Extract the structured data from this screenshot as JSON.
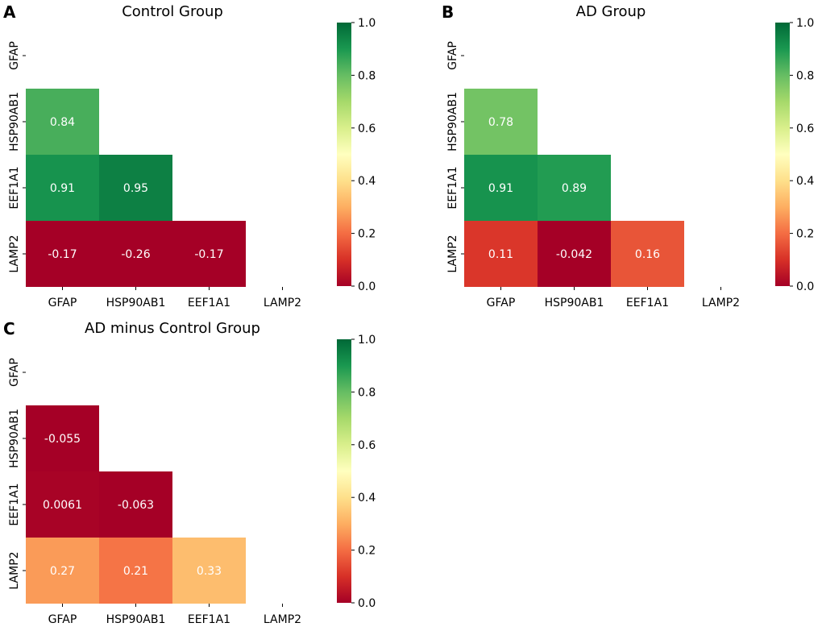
{
  "chart_data": [
    {
      "type": "heatmap",
      "panel_label": "A",
      "title": "Control Group",
      "row_labels": [
        "GFAP",
        "HSP90AB1",
        "EEF1A1",
        "LAMP2"
      ],
      "col_labels": [
        "GFAP",
        "HSP90AB1",
        "EEF1A1",
        "LAMP2"
      ],
      "mask": "upper-triangle-including-diagonal",
      "values": [
        [
          null,
          null,
          null,
          null
        ],
        [
          0.84,
          null,
          null,
          null
        ],
        [
          0.91,
          0.95,
          null,
          null
        ],
        [
          -0.17,
          -0.26,
          -0.17,
          null
        ]
      ],
      "annotations": [
        [
          null,
          null,
          null,
          null
        ],
        [
          "0.84",
          null,
          null,
          null
        ],
        [
          "0.91",
          "0.95",
          null,
          null
        ],
        [
          "-0.17",
          "-0.26",
          "-0.17",
          null
        ]
      ],
      "colorbar": {
        "colormap": "RdYlGn",
        "range": [
          0.0,
          1.0
        ],
        "ticks": [
          "0.0",
          "0.2",
          "0.4",
          "0.6",
          "0.8",
          "1.0"
        ]
      }
    },
    {
      "type": "heatmap",
      "panel_label": "B",
      "title": "AD Group",
      "row_labels": [
        "GFAP",
        "HSP90AB1",
        "EEF1A1",
        "LAMP2"
      ],
      "col_labels": [
        "GFAP",
        "HSP90AB1",
        "EEF1A1",
        "LAMP2"
      ],
      "mask": "upper-triangle-including-diagonal",
      "values": [
        [
          null,
          null,
          null,
          null
        ],
        [
          0.78,
          null,
          null,
          null
        ],
        [
          0.91,
          0.89,
          null,
          null
        ],
        [
          0.11,
          -0.042,
          0.16,
          null
        ]
      ],
      "annotations": [
        [
          null,
          null,
          null,
          null
        ],
        [
          "0.78",
          null,
          null,
          null
        ],
        [
          "0.91",
          "0.89",
          null,
          null
        ],
        [
          "0.11",
          "-0.042",
          "0.16",
          null
        ]
      ],
      "colorbar": {
        "colormap": "RdYlGn",
        "range": [
          0.0,
          1.0
        ],
        "ticks": [
          "0.0",
          "0.2",
          "0.4",
          "0.6",
          "0.8",
          "1.0"
        ]
      }
    },
    {
      "type": "heatmap",
      "panel_label": "C",
      "title": "AD minus Control Group",
      "row_labels": [
        "GFAP",
        "HSP90AB1",
        "EEF1A1",
        "LAMP2"
      ],
      "col_labels": [
        "GFAP",
        "HSP90AB1",
        "EEF1A1",
        "LAMP2"
      ],
      "mask": "upper-triangle-including-diagonal",
      "values": [
        [
          null,
          null,
          null,
          null
        ],
        [
          -0.055,
          null,
          null,
          null
        ],
        [
          0.0061,
          -0.063,
          null,
          null
        ],
        [
          0.27,
          0.21,
          0.33,
          null
        ]
      ],
      "annotations": [
        [
          null,
          null,
          null,
          null
        ],
        [
          "-0.055",
          null,
          null,
          null
        ],
        [
          "0.0061",
          "-0.063",
          null,
          null
        ],
        [
          "0.27",
          "0.21",
          "0.33",
          null
        ]
      ],
      "colorbar": {
        "colormap": "RdYlGn",
        "range": [
          0.0,
          1.0
        ],
        "ticks": [
          "0.0",
          "0.2",
          "0.4",
          "0.6",
          "0.8",
          "1.0"
        ]
      }
    }
  ],
  "colors": {
    "stops": [
      "#a50026",
      "#d73027",
      "#f46d43",
      "#fdae61",
      "#fee08b",
      "#ffffbf",
      "#d9ef8b",
      "#a6d96a",
      "#66bd63",
      "#1a9850",
      "#006837"
    ],
    "text": "#000000",
    "cell_text": "#ffffff"
  }
}
